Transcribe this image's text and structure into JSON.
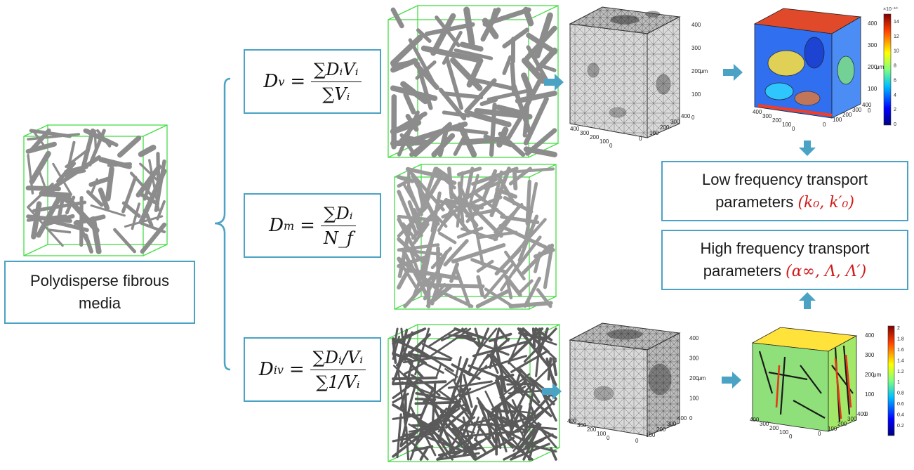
{
  "polydisperse_label": {
    "line1": "Polydisperse fibrous",
    "line2": "media"
  },
  "formulas": {
    "dv": {
      "lhs": "D",
      "lhs_sub": "v",
      "num": "∑DᵢVᵢ",
      "den": "∑Vᵢ"
    },
    "dm": {
      "lhs": "D",
      "lhs_sub": "m",
      "num": "∑Dᵢ",
      "den": "N_f"
    },
    "div": {
      "lhs": "D",
      "lhs_sub": "iv",
      "num": "∑Dᵢ/Vᵢ",
      "den": "∑1/Vᵢ"
    }
  },
  "low_freq": {
    "line1": "Low frequency transport",
    "line2": "parameters",
    "params": "(k₀, k′₀)"
  },
  "high_freq": {
    "line1": "High frequency transport",
    "line2": "parameters",
    "params": "(α∞, Λ, Λ′)"
  },
  "axis_unit": "μm",
  "mesh_ticks": [
    "400",
    "300",
    "200",
    "100",
    "0"
  ],
  "colorbar_top": {
    "exponent": "×10⁻¹⁰",
    "ticks": [
      "14",
      "12",
      "10",
      "8",
      "6",
      "4",
      "2",
      "0"
    ]
  },
  "colorbar_bottom": {
    "ticks": [
      "2",
      "1.8",
      "1.6",
      "1.4",
      "1.2",
      "1",
      "0.8",
      "0.6",
      "0.4",
      "0.2"
    ]
  },
  "colors": {
    "box_border": "#4aa3c4",
    "arrow": "#4aa3c4",
    "cube_edge": "#44dd44",
    "fiber": "#8c8c8c",
    "mesh": "#6b6b6b",
    "highlight": "#d11a1a"
  }
}
